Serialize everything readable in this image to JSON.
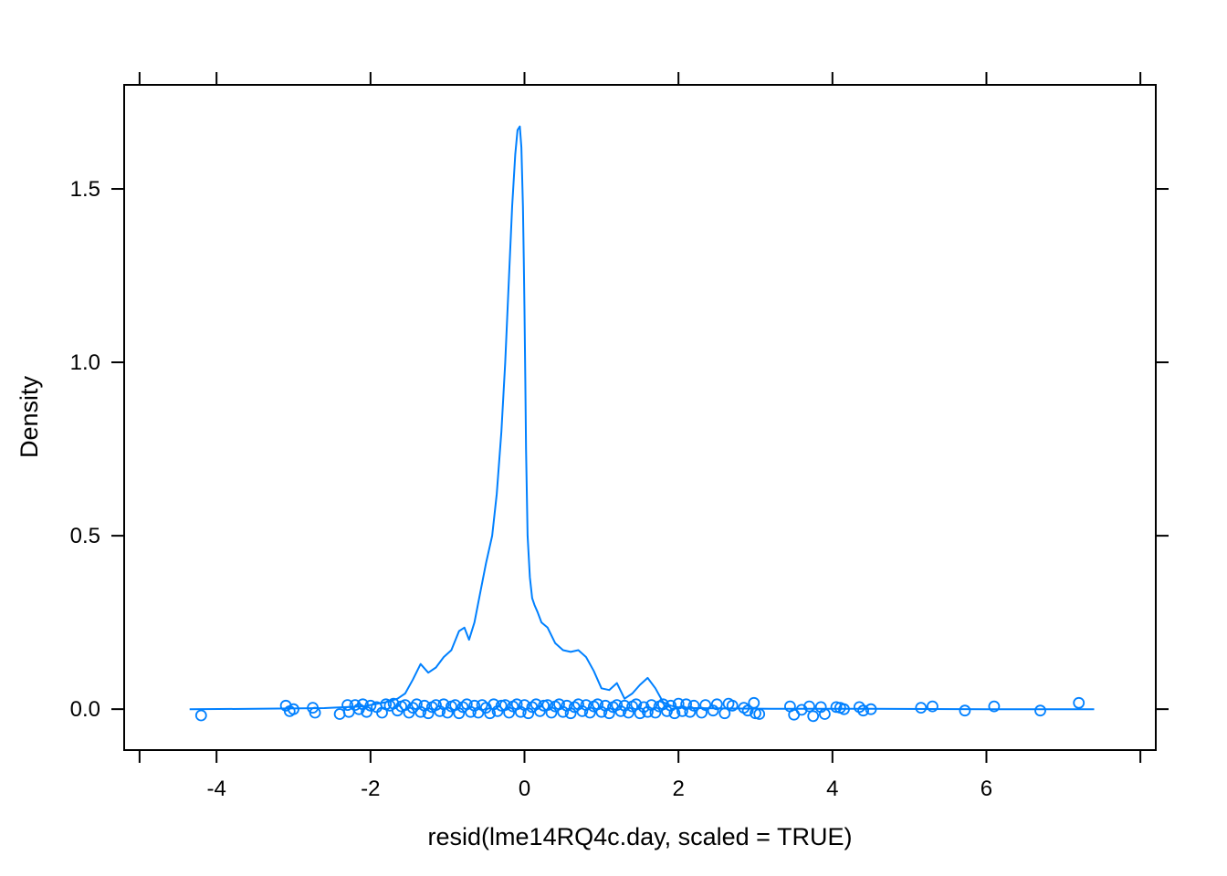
{
  "chart_data": {
    "type": "line",
    "xlabel": "resid(lme14RQ4c.day, scaled = TRUE)",
    "ylabel": "Density",
    "xlim": [
      -5.2,
      8.2
    ],
    "ylim": [
      -0.118,
      1.8
    ],
    "x_ticks": [
      -4,
      -2,
      0,
      2,
      4,
      6
    ],
    "y_ticks": [
      0.0,
      0.5,
      1.0,
      1.5
    ],
    "x_tick_labels": [
      "-4",
      "-2",
      "0",
      "2",
      "4",
      "6"
    ],
    "y_tick_labels": [
      "0.0",
      "0.5",
      "1.0",
      "1.5"
    ],
    "grid": false,
    "color": "#0080ff",
    "series": [
      {
        "kind": "density",
        "x": [
          -4.35,
          -3.5,
          -2.6,
          -2.1,
          -1.8,
          -1.65,
          -1.55,
          -1.45,
          -1.35,
          -1.25,
          -1.15,
          -1.05,
          -0.95,
          -0.85,
          -0.78,
          -0.72,
          -0.65,
          -0.58,
          -0.5,
          -0.42,
          -0.36,
          -0.3,
          -0.25,
          -0.2,
          -0.16,
          -0.12,
          -0.09,
          -0.06,
          -0.04,
          -0.02,
          -0.01,
          0.0,
          0.01,
          0.02,
          0.04,
          0.07,
          0.1,
          0.13,
          0.17,
          0.22,
          0.3,
          0.4,
          0.5,
          0.6,
          0.7,
          0.8,
          0.9,
          1.0,
          1.1,
          1.2,
          1.3,
          1.4,
          1.5,
          1.6,
          1.7,
          1.8,
          1.9,
          2.0,
          2.2,
          2.6,
          3.2,
          4.5,
          6.0,
          7.4
        ],
        "y": [
          0.0,
          0.001,
          0.003,
          0.008,
          0.02,
          0.03,
          0.045,
          0.085,
          0.13,
          0.105,
          0.12,
          0.15,
          0.17,
          0.225,
          0.235,
          0.2,
          0.25,
          0.33,
          0.42,
          0.5,
          0.62,
          0.8,
          1.0,
          1.25,
          1.45,
          1.6,
          1.67,
          1.68,
          1.62,
          1.45,
          1.3,
          1.15,
          0.95,
          0.75,
          0.5,
          0.38,
          0.32,
          0.3,
          0.28,
          0.25,
          0.235,
          0.19,
          0.17,
          0.165,
          0.17,
          0.15,
          0.11,
          0.06,
          0.055,
          0.075,
          0.03,
          0.045,
          0.07,
          0.09,
          0.06,
          0.02,
          0.01,
          0.005,
          0.003,
          0.002,
          0.001,
          0.001,
          0.0,
          0.0
        ]
      },
      {
        "kind": "rug-points",
        "x": [
          -4.2,
          -3.1,
          -3.05,
          -3.0,
          -2.75,
          -2.72,
          -2.4,
          -2.3,
          -2.28,
          -2.2,
          -2.15,
          -2.1,
          -2.05,
          -2.0,
          -1.92,
          -1.85,
          -1.8,
          -1.75,
          -1.7,
          -1.65,
          -1.6,
          -1.55,
          -1.5,
          -1.45,
          -1.4,
          -1.35,
          -1.3,
          -1.25,
          -1.2,
          -1.15,
          -1.1,
          -1.05,
          -1.0,
          -0.95,
          -0.9,
          -0.85,
          -0.8,
          -0.75,
          -0.7,
          -0.65,
          -0.6,
          -0.55,
          -0.5,
          -0.45,
          -0.4,
          -0.35,
          -0.3,
          -0.25,
          -0.2,
          -0.15,
          -0.1,
          -0.05,
          0.0,
          0.05,
          0.1,
          0.15,
          0.2,
          0.25,
          0.3,
          0.35,
          0.4,
          0.45,
          0.5,
          0.55,
          0.6,
          0.65,
          0.7,
          0.75,
          0.8,
          0.85,
          0.9,
          0.95,
          1.0,
          1.05,
          1.1,
          1.15,
          1.2,
          1.25,
          1.3,
          1.35,
          1.4,
          1.45,
          1.5,
          1.55,
          1.6,
          1.65,
          1.7,
          1.75,
          1.8,
          1.85,
          1.9,
          1.95,
          2.0,
          2.05,
          2.1,
          2.15,
          2.2,
          2.3,
          2.35,
          2.45,
          2.5,
          2.6,
          2.65,
          2.7,
          2.85,
          2.9,
          2.98,
          3.0,
          3.05,
          3.45,
          3.5,
          3.6,
          3.7,
          3.75,
          3.85,
          3.9,
          4.05,
          4.1,
          4.15,
          4.35,
          4.4,
          4.5,
          5.15,
          5.3,
          5.72,
          6.1,
          6.7,
          7.2
        ],
        "y": [
          -0.018,
          0.01,
          -0.006,
          0.0,
          0.004,
          -0.01,
          -0.014,
          0.012,
          -0.008,
          0.012,
          0.0,
          0.014,
          -0.008,
          0.01,
          0.006,
          -0.01,
          0.014,
          0.01,
          0.016,
          -0.004,
          0.008,
          0.012,
          -0.01,
          0.004,
          0.014,
          -0.008,
          0.01,
          -0.012,
          0.006,
          0.012,
          -0.006,
          0.014,
          -0.01,
          0.008,
          0.012,
          -0.012,
          0.006,
          0.014,
          -0.008,
          0.01,
          -0.01,
          0.012,
          0.004,
          -0.012,
          0.014,
          -0.006,
          0.01,
          0.012,
          -0.01,
          0.008,
          0.014,
          -0.008,
          0.012,
          -0.012,
          0.006,
          0.014,
          -0.006,
          0.01,
          0.012,
          -0.01,
          0.008,
          0.014,
          -0.008,
          0.01,
          -0.012,
          0.006,
          0.014,
          -0.006,
          0.012,
          -0.01,
          0.008,
          0.014,
          -0.008,
          0.01,
          -0.012,
          0.006,
          0.012,
          -0.006,
          0.01,
          -0.01,
          0.008,
          0.014,
          -0.012,
          0.006,
          -0.008,
          0.012,
          -0.01,
          0.008,
          0.014,
          -0.006,
          0.01,
          -0.012,
          0.016,
          -0.006,
          0.014,
          -0.008,
          0.01,
          -0.01,
          0.012,
          -0.004,
          0.014,
          -0.012,
          0.016,
          0.01,
          0.004,
          -0.004,
          0.018,
          -0.012,
          -0.014,
          0.008,
          -0.016,
          -0.002,
          0.008,
          -0.02,
          0.006,
          -0.014,
          0.006,
          0.004,
          0.0,
          0.006,
          -0.004,
          0.0,
          0.004,
          0.008,
          -0.004,
          0.008,
          -0.004,
          0.018
        ]
      }
    ]
  }
}
